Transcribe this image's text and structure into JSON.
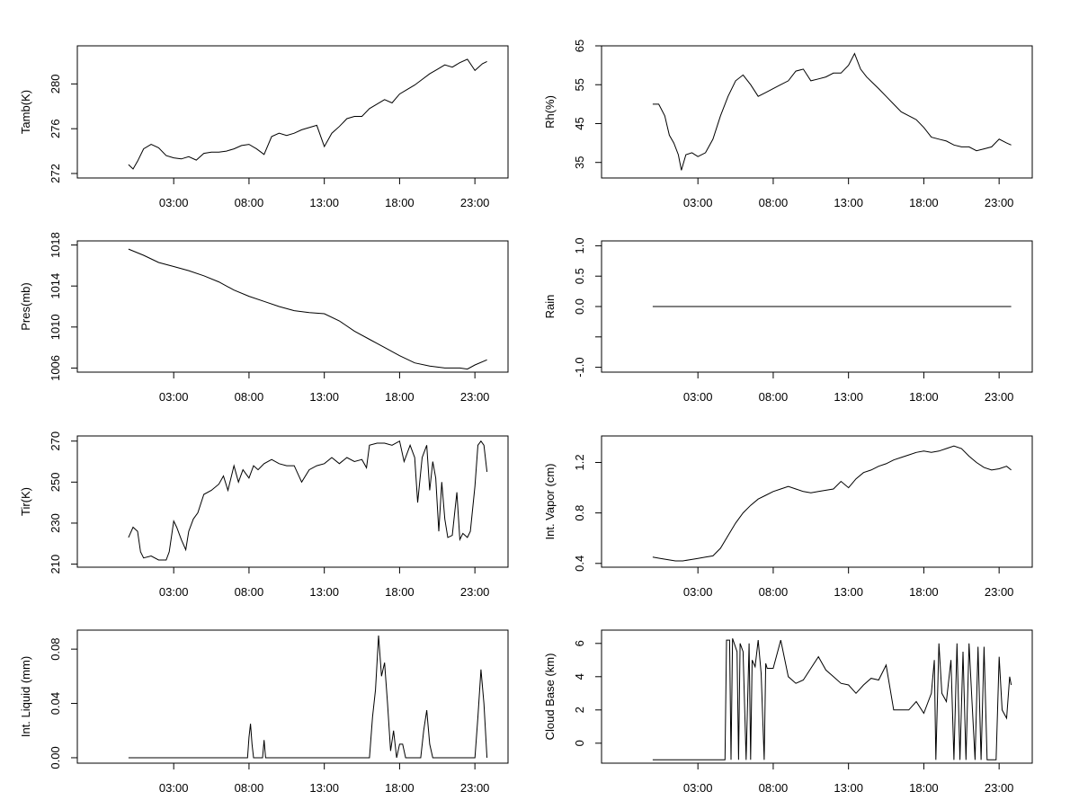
{
  "chart_data": [
    {
      "type": "line",
      "ylabel": "Tamb(K)",
      "ylim": [
        271.6,
        283.4
      ],
      "yticks": [
        272,
        276,
        280
      ],
      "xlim": [
        -3.4,
        25.2
      ],
      "xticks": [
        3,
        8,
        13,
        18,
        23
      ],
      "xtick_labels": [
        "03:00",
        "08:00",
        "13:00",
        "18:00",
        "23:00"
      ],
      "series": [
        {
          "x": [
            0,
            0.3,
            0.6,
            1,
            1.5,
            2,
            2.5,
            3,
            3.5,
            4,
            4.5,
            5,
            5.5,
            6,
            6.5,
            7,
            7.5,
            8,
            8.5,
            9,
            9.5,
            10,
            10.5,
            11,
            11.5,
            12,
            12.5,
            13,
            13.5,
            14,
            14.5,
            15,
            15.5,
            16,
            16.5,
            17,
            17.5,
            18,
            18.5,
            19,
            19.5,
            20,
            20.5,
            21,
            21.5,
            22,
            22.5,
            23,
            23.5,
            23.8
          ],
          "values": [
            272.8,
            272.4,
            273.1,
            274.2,
            274.6,
            274.3,
            273.6,
            273.4,
            273.3,
            273.5,
            273.2,
            273.8,
            273.9,
            273.9,
            274.0,
            274.2,
            274.5,
            274.6,
            274.2,
            273.7,
            275.3,
            275.6,
            275.4,
            275.6,
            275.9,
            276.1,
            276.3,
            274.4,
            275.6,
            276.2,
            276.9,
            277.1,
            277.1,
            277.8,
            278.2,
            278.6,
            278.3,
            279.1,
            279.5,
            279.9,
            280.4,
            280.9,
            281.3,
            281.7,
            281.5,
            281.9,
            282.2,
            281.2,
            281.8,
            282.0
          ]
        }
      ]
    },
    {
      "type": "line",
      "ylabel": "Rh(%)",
      "ylim": [
        31,
        65
      ],
      "yticks": [
        35,
        45,
        55,
        65
      ],
      "xlim": [
        -3.4,
        25.2
      ],
      "xticks": [
        3,
        8,
        13,
        18,
        23
      ],
      "xtick_labels": [
        "03:00",
        "08:00",
        "13:00",
        "18:00",
        "23:00"
      ],
      "series": [
        {
          "x": [
            0,
            0.4,
            0.8,
            1.1,
            1.4,
            1.7,
            1.9,
            2.2,
            2.6,
            3,
            3.5,
            4,
            4.5,
            5,
            5.5,
            6,
            6.5,
            7,
            7.5,
            8,
            8.5,
            9,
            9.5,
            10,
            10.5,
            11,
            11.5,
            12,
            12.5,
            13,
            13.4,
            13.8,
            14.2,
            14.6,
            15,
            15.5,
            16,
            16.5,
            17,
            17.5,
            18,
            18.5,
            19,
            19.5,
            20,
            20.5,
            21,
            21.5,
            22,
            22.5,
            23,
            23.5,
            23.8
          ],
          "values": [
            50,
            50,
            47,
            42,
            40,
            37,
            33,
            37,
            37.5,
            36.5,
            37.5,
            41,
            47,
            52,
            56,
            57.5,
            55,
            52,
            53,
            54,
            55,
            56,
            58.5,
            59,
            56,
            56.5,
            57,
            58,
            58,
            60,
            63,
            59,
            57,
            55.5,
            54,
            52,
            50,
            48,
            47,
            46,
            44,
            41.5,
            41,
            40.5,
            39.5,
            39,
            39,
            38,
            38.5,
            39,
            41,
            40,
            39.5
          ]
        }
      ]
    },
    {
      "type": "line",
      "ylabel": "Pres(mb)",
      "ylim": [
        1005.6,
        1018.4
      ],
      "yticks": [
        1006,
        1010,
        1014,
        1018
      ],
      "xlim": [
        -3.4,
        25.2
      ],
      "xticks": [
        3,
        8,
        13,
        18,
        23
      ],
      "xtick_labels": [
        "03:00",
        "08:00",
        "13:00",
        "18:00",
        "23:00"
      ],
      "series": [
        {
          "x": [
            0,
            1,
            2,
            3,
            4,
            5,
            6,
            7,
            8,
            9,
            10,
            11,
            12,
            13,
            14,
            15,
            16,
            17,
            18,
            19,
            20,
            21,
            22,
            22.5,
            23,
            23.8
          ],
          "values": [
            1017.6,
            1017.0,
            1016.3,
            1015.9,
            1015.5,
            1015.0,
            1014.4,
            1013.6,
            1013.0,
            1012.5,
            1012.0,
            1011.6,
            1011.4,
            1011.3,
            1010.6,
            1009.6,
            1008.8,
            1008.0,
            1007.2,
            1006.5,
            1006.2,
            1006.0,
            1006.0,
            1005.9,
            1006.3,
            1006.8
          ]
        }
      ]
    },
    {
      "type": "line",
      "ylabel": "Rain",
      "ylim": [
        -1.08,
        1.08
      ],
      "yticks": [
        -1.0,
        -0.5,
        0.0,
        0.5,
        1.0
      ],
      "ytick_labels": [
        "-1.0",
        "",
        "0.0",
        "0.5",
        "1.0"
      ],
      "xlim": [
        -3.4,
        25.2
      ],
      "xticks": [
        3,
        8,
        13,
        18,
        23
      ],
      "xtick_labels": [
        "03:00",
        "08:00",
        "13:00",
        "18:00",
        "23:00"
      ],
      "series": [
        {
          "x": [
            0,
            23.8
          ],
          "values": [
            0,
            0
          ]
        }
      ]
    },
    {
      "type": "line",
      "ylabel": "Tir(K)",
      "ylim": [
        208.5,
        272.5
      ],
      "yticks": [
        210,
        230,
        250,
        270
      ],
      "xlim": [
        -3.4,
        25.2
      ],
      "xticks": [
        3,
        8,
        13,
        18,
        23
      ],
      "xtick_labels": [
        "03:00",
        "08:00",
        "13:00",
        "18:00",
        "23:00"
      ],
      "series": [
        {
          "x": [
            0,
            0.3,
            0.6,
            0.8,
            1.0,
            1.5,
            2,
            2.5,
            2.7,
            3,
            3.2,
            3.5,
            3.8,
            4,
            4.3,
            4.6,
            5,
            5.5,
            6,
            6.3,
            6.6,
            7,
            7.3,
            7.6,
            8,
            8.3,
            8.6,
            9,
            9.5,
            10,
            10.5,
            11,
            11.5,
            12,
            12.5,
            13,
            13.5,
            14,
            14.5,
            15,
            15.5,
            15.8,
            16,
            16.5,
            17,
            17.5,
            18,
            18.3,
            18.7,
            19,
            19.2,
            19.5,
            19.8,
            20,
            20.2,
            20.4,
            20.6,
            20.8,
            21,
            21.2,
            21.5,
            21.8,
            22,
            22.2,
            22.5,
            22.7,
            23,
            23.2,
            23.4,
            23.6,
            23.8
          ],
          "values": [
            223,
            228,
            226,
            216,
            213,
            214,
            212,
            212,
            216,
            231,
            228,
            222,
            217,
            226,
            232,
            235,
            244,
            246,
            249,
            253,
            246,
            258,
            250,
            256,
            252,
            258,
            256,
            259,
            261,
            259,
            258,
            258,
            250,
            256,
            258,
            259,
            262,
            259,
            262,
            260,
            261,
            257,
            268,
            269,
            269,
            268,
            270,
            260,
            268,
            262,
            240,
            262,
            268,
            246,
            260,
            252,
            226,
            250,
            232,
            223,
            224,
            245,
            222,
            225,
            223,
            226,
            248,
            268,
            270,
            268,
            255
          ]
        }
      ]
    },
    {
      "type": "line",
      "ylabel": "Int. Vapor (cm)",
      "ylim": [
        0.37,
        1.41
      ],
      "yticks": [
        0.4,
        0.8,
        1.2
      ],
      "xlim": [
        -3.4,
        25.2
      ],
      "xticks": [
        3,
        8,
        13,
        18,
        23
      ],
      "xtick_labels": [
        "03:00",
        "08:00",
        "13:00",
        "18:00",
        "23:00"
      ],
      "series": [
        {
          "x": [
            0,
            0.5,
            1,
            1.5,
            2,
            2.5,
            3,
            3.5,
            4,
            4.5,
            5,
            5.5,
            6,
            6.5,
            7,
            7.5,
            8,
            8.5,
            9,
            9.5,
            10,
            10.5,
            11,
            11.5,
            12,
            12.5,
            13,
            13.5,
            14,
            14.5,
            15,
            15.5,
            16,
            16.5,
            17,
            17.5,
            18,
            18.5,
            19,
            19.5,
            20,
            20.5,
            21,
            21.5,
            22,
            22.5,
            23,
            23.5,
            23.8
          ],
          "values": [
            0.45,
            0.44,
            0.43,
            0.42,
            0.42,
            0.43,
            0.44,
            0.45,
            0.46,
            0.52,
            0.62,
            0.72,
            0.8,
            0.86,
            0.91,
            0.94,
            0.97,
            0.99,
            1.01,
            0.99,
            0.97,
            0.96,
            0.97,
            0.98,
            0.99,
            1.05,
            1.0,
            1.07,
            1.12,
            1.14,
            1.17,
            1.19,
            1.22,
            1.24,
            1.26,
            1.28,
            1.29,
            1.28,
            1.29,
            1.31,
            1.33,
            1.31,
            1.25,
            1.2,
            1.16,
            1.14,
            1.15,
            1.17,
            1.14
          ]
        }
      ]
    },
    {
      "type": "line",
      "ylabel": "Int. Liquid (mm)",
      "ylim": [
        -0.004,
        0.094
      ],
      "yticks": [
        0.0,
        0.04,
        0.08
      ],
      "ytick_labels": [
        "0.00",
        "0.04",
        "0.08"
      ],
      "xlim": [
        -3.4,
        25.2
      ],
      "xticks": [
        3,
        8,
        13,
        18,
        23
      ],
      "xtick_labels": [
        "03:00",
        "08:00",
        "13:00",
        "18:00",
        "23:00"
      ],
      "series": [
        {
          "x": [
            0,
            7.9,
            8.0,
            8.1,
            8.2,
            8.3,
            8.9,
            9.0,
            9.1,
            16.0,
            16.2,
            16.4,
            16.6,
            16.8,
            17.0,
            17.2,
            17.4,
            17.6,
            17.8,
            18.0,
            18.2,
            18.4,
            19.4,
            19.6,
            19.8,
            20.0,
            20.2,
            23.0,
            23.2,
            23.4,
            23.6,
            23.8
          ],
          "values": [
            0,
            0,
            0.015,
            0.025,
            0.01,
            0,
            0,
            0.013,
            0,
            0,
            0.03,
            0.05,
            0.09,
            0.06,
            0.07,
            0.04,
            0.005,
            0.02,
            0,
            0.01,
            0.01,
            0,
            0,
            0.02,
            0.035,
            0.01,
            0,
            0,
            0.03,
            0.065,
            0.04,
            0
          ]
        }
      ]
    },
    {
      "type": "line",
      "ylabel": "Cloud Base (km)",
      "ylim": [
        -1.2,
        6.8
      ],
      "yticks": [
        0,
        2,
        4,
        6
      ],
      "xlim": [
        -3.4,
        25.2
      ],
      "xticks": [
        3,
        8,
        13,
        18,
        23
      ],
      "xtick_labels": [
        "03:00",
        "08:00",
        "13:00",
        "18:00",
        "23:00"
      ],
      "series": [
        {
          "x": [
            0,
            4.8,
            4.9,
            5.1,
            5.2,
            5.3,
            5.6,
            5.7,
            5.8,
            6.0,
            6.2,
            6.4,
            6.5,
            6.6,
            6.8,
            7.0,
            7.2,
            7.4,
            7.5,
            7.6,
            8.0,
            8.5,
            9.0,
            9.5,
            10,
            10.5,
            11,
            11.5,
            12,
            12.5,
            13,
            13.5,
            14,
            14.5,
            15,
            15.5,
            16,
            16.5,
            17,
            17.5,
            18,
            18.5,
            18.7,
            18.8,
            19,
            19.2,
            19.5,
            19.8,
            20,
            20.2,
            20.4,
            20.6,
            20.8,
            21,
            21.2,
            21.4,
            21.6,
            21.8,
            22,
            22.2,
            22.5,
            22.8,
            23,
            23.2,
            23.5,
            23.7,
            23.8
          ],
          "values": [
            -1,
            -1,
            6.2,
            6.2,
            -1,
            6.3,
            5.5,
            -1,
            6.0,
            5.5,
            -1,
            6.0,
            -1,
            5.0,
            4.6,
            6.2,
            4.2,
            -1,
            4.8,
            4.5,
            4.5,
            6.2,
            4.0,
            3.6,
            3.8,
            4.5,
            5.2,
            4.4,
            4.0,
            3.6,
            3.5,
            3.0,
            3.5,
            3.9,
            3.8,
            4.7,
            2.0,
            2.0,
            2.0,
            2.5,
            1.8,
            3.0,
            5.0,
            -1,
            6.0,
            3.0,
            2.5,
            5.0,
            -1,
            6.0,
            -1,
            5.5,
            -1,
            6.0,
            2.5,
            -1,
            5.8,
            -1,
            5.8,
            -1,
            -1,
            -1,
            5.2,
            2.0,
            1.5,
            4.0,
            3.5
          ]
        }
      ]
    }
  ]
}
